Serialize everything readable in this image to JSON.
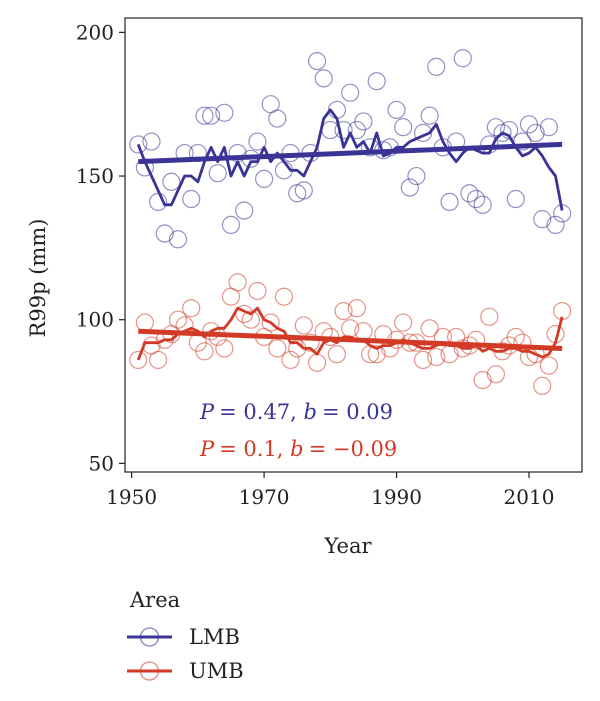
{
  "chart_data": {
    "type": "scatter",
    "xlabel": "Year",
    "ylabel": "R99p (mm)",
    "xlim": [
      1949,
      2018
    ],
    "ylim": [
      47,
      205
    ],
    "xticks": [
      1950,
      1970,
      1990,
      2010
    ],
    "yticks": [
      50,
      100,
      150,
      200
    ],
    "grid": false,
    "legend": {
      "title": "Area",
      "placement": "bottom",
      "entries": [
        "LMB",
        "UMB"
      ]
    },
    "colors": {
      "LMB": "#3b3496",
      "UMB": "#d23a26"
    },
    "series": [
      {
        "name": "LMB",
        "x": [
          1951,
          1952,
          1953,
          1954,
          1955,
          1956,
          1957,
          1958,
          1959,
          1960,
          1961,
          1962,
          1963,
          1964,
          1965,
          1966,
          1967,
          1968,
          1969,
          1970,
          1971,
          1972,
          1973,
          1974,
          1975,
          1976,
          1977,
          1978,
          1979,
          1980,
          1981,
          1982,
          1983,
          1984,
          1985,
          1986,
          1987,
          1988,
          1989,
          1990,
          1991,
          1992,
          1993,
          1994,
          1995,
          1996,
          1997,
          1998,
          1999,
          2000,
          2001,
          2002,
          2003,
          2004,
          2005,
          2006,
          2007,
          2008,
          2009,
          2010,
          2011,
          2012,
          2013,
          2014,
          2015
        ],
        "y": [
          161,
          153,
          162,
          141,
          130,
          148,
          128,
          158,
          142,
          158,
          171,
          171,
          151,
          172,
          133,
          158,
          138,
          156,
          162,
          149,
          175,
          170,
          152,
          158,
          144,
          145,
          158,
          190,
          184,
          166,
          173,
          166,
          179,
          166,
          169,
          160,
          183,
          159,
          160,
          173,
          167,
          146,
          150,
          165,
          171,
          188,
          160,
          141,
          162,
          191,
          144,
          142,
          140,
          161,
          167,
          165,
          166,
          142,
          162,
          168,
          165,
          135,
          167,
          133,
          137
        ],
        "smooth": [
          161,
          155,
          150,
          145,
          140,
          140,
          145,
          150,
          150,
          148,
          155,
          160,
          155,
          160,
          150,
          155,
          150,
          155,
          155,
          160,
          155,
          158,
          155,
          152,
          152,
          150,
          155,
          160,
          170,
          173,
          170,
          160,
          165,
          160,
          162,
          158,
          165,
          157,
          158,
          160,
          160,
          162,
          163,
          164,
          165,
          168,
          162,
          158,
          155,
          158,
          160,
          159,
          158,
          158,
          163,
          165,
          164,
          160,
          157,
          158,
          160,
          157,
          153,
          150,
          138
        ],
        "trend": [
          155,
          161
        ]
      },
      {
        "name": "UMB",
        "x": [
          1951,
          1952,
          1953,
          1954,
          1955,
          1956,
          1957,
          1958,
          1959,
          1960,
          1961,
          1962,
          1963,
          1964,
          1965,
          1966,
          1967,
          1968,
          1969,
          1970,
          1971,
          1972,
          1973,
          1974,
          1975,
          1976,
          1977,
          1978,
          1979,
          1980,
          1981,
          1982,
          1983,
          1984,
          1985,
          1986,
          1987,
          1988,
          1989,
          1990,
          1991,
          1992,
          1993,
          1994,
          1995,
          1996,
          1997,
          1998,
          1999,
          2000,
          2001,
          2002,
          2003,
          2004,
          2005,
          2006,
          2007,
          2008,
          2009,
          2010,
          2011,
          2012,
          2013,
          2014,
          2015
        ],
        "y": [
          86,
          99,
          91,
          86,
          93,
          95,
          100,
          98,
          104,
          92,
          89,
          96,
          94,
          90,
          108,
          113,
          102,
          100,
          110,
          94,
          99,
          90,
          108,
          86,
          90,
          98,
          92,
          85,
          96,
          94,
          88,
          103,
          97,
          104,
          96,
          88,
          88,
          95,
          90,
          93,
          99,
          92,
          92,
          86,
          97,
          87,
          94,
          88,
          94,
          90,
          91,
          93,
          79,
          101,
          81,
          89,
          91,
          94,
          92,
          87,
          88,
          77,
          84,
          95,
          103
        ],
        "smooth": [
          86,
          92,
          92,
          92,
          93,
          93,
          95,
          96,
          97,
          96,
          94,
          96,
          97,
          97,
          100,
          104,
          103,
          102,
          104,
          100,
          99,
          97,
          96,
          92,
          92,
          90,
          90,
          88,
          92,
          93,
          92,
          94,
          94,
          93,
          93,
          91,
          90,
          91,
          91,
          92,
          93,
          92,
          91,
          90,
          90,
          91,
          92,
          91,
          91,
          90,
          90,
          91,
          89,
          90,
          89,
          89,
          90,
          90,
          89,
          89,
          88,
          87,
          88,
          92,
          101
        ],
        "trend": [
          96,
          90
        ]
      }
    ],
    "annotations": [
      {
        "series": "LMB",
        "p_label": "P",
        "p_value": "= 0.47, ",
        "b_label": "b",
        "b_value": "= 0.09"
      },
      {
        "series": "UMB",
        "p_label": "P",
        "p_value": "= 0.1, ",
        "b_label": "b",
        "b_value": "= −0.09"
      }
    ]
  }
}
